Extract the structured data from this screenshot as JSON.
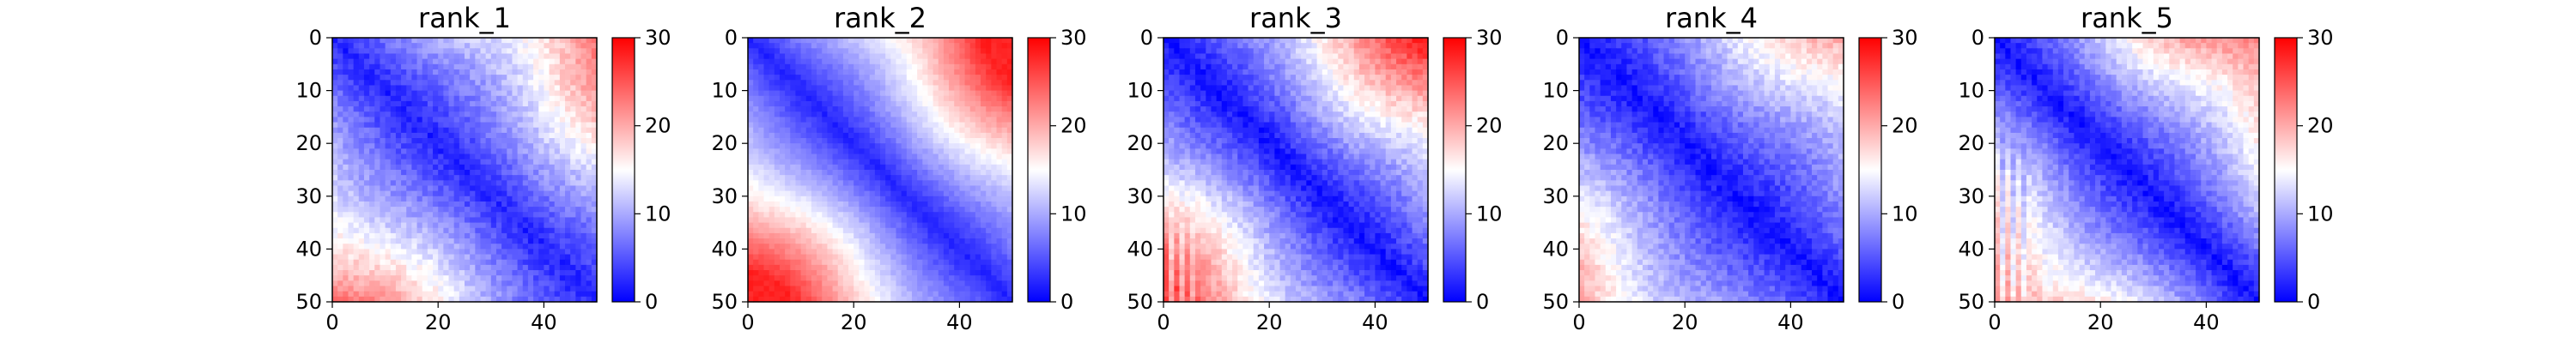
{
  "figure": {
    "background": "#ffffff"
  },
  "colormap": {
    "name": "bwr",
    "low": "#0000ff",
    "mid": "#ffffff",
    "high": "#ff0000"
  },
  "chart_data": [
    {
      "type": "heatmap",
      "title": "rank_1",
      "xlabel": "",
      "ylabel": "",
      "grid": false,
      "matrix_size": 50,
      "x_range": [
        0,
        50
      ],
      "y_range": [
        0,
        50
      ],
      "x_ticks": [
        0,
        20,
        40
      ],
      "y_ticks": [
        0,
        10,
        20,
        30,
        40,
        50
      ],
      "colorbar": {
        "range": [
          0,
          30
        ],
        "ticks": [
          0,
          10,
          20,
          30
        ]
      },
      "pattern": {
        "diag": 2,
        "slope": 0.42,
        "far": 24,
        "low_block": 16,
        "low_block_value": 9,
        "lower_left_value": 27,
        "striped": true
      }
    },
    {
      "type": "heatmap",
      "title": "rank_2",
      "xlabel": "",
      "ylabel": "",
      "grid": false,
      "matrix_size": 50,
      "x_range": [
        0,
        50
      ],
      "y_range": [
        0,
        50
      ],
      "x_ticks": [
        0,
        20,
        40
      ],
      "y_ticks": [
        0,
        10,
        20,
        30,
        40,
        50
      ],
      "colorbar": {
        "range": [
          0,
          30
        ],
        "ticks": [
          0,
          10,
          20,
          30
        ]
      },
      "pattern": {
        "diag": 2,
        "slope": 0.55,
        "far": 28,
        "low_block": 12,
        "low_block_value": 11,
        "lower_left_value": 28,
        "striped": false
      }
    },
    {
      "type": "heatmap",
      "title": "rank_3",
      "xlabel": "",
      "ylabel": "",
      "grid": false,
      "matrix_size": 50,
      "x_range": [
        0,
        50
      ],
      "y_range": [
        0,
        50
      ],
      "x_ticks": [
        0,
        20,
        40
      ],
      "y_ticks": [
        0,
        10,
        20,
        30,
        40,
        50
      ],
      "colorbar": {
        "range": [
          0,
          30
        ],
        "ticks": [
          0,
          10,
          20,
          30
        ]
      },
      "pattern": {
        "diag": 1,
        "slope": 0.5,
        "far": 29,
        "low_block": 15,
        "low_block_value": 8,
        "lower_left_value": 18,
        "striped": true
      }
    },
    {
      "type": "heatmap",
      "title": "rank_4",
      "xlabel": "",
      "ylabel": "",
      "grid": false,
      "matrix_size": 50,
      "x_range": [
        0,
        50
      ],
      "y_range": [
        0,
        50
      ],
      "x_ticks": [
        0,
        20,
        40
      ],
      "y_ticks": [
        0,
        10,
        20,
        30,
        40,
        50
      ],
      "colorbar": {
        "range": [
          0,
          30
        ],
        "ticks": [
          0,
          10,
          20,
          30
        ]
      },
      "pattern": {
        "diag": 1,
        "slope": 0.38,
        "far": 29,
        "low_block": 15,
        "low_block_value": 10,
        "lower_left_value": 24,
        "striped": true
      }
    },
    {
      "type": "heatmap",
      "title": "rank_5",
      "xlabel": "",
      "ylabel": "",
      "grid": false,
      "matrix_size": 50,
      "x_range": [
        0,
        50
      ],
      "y_range": [
        0,
        50
      ],
      "x_ticks": [
        0,
        20,
        40
      ],
      "y_ticks": [
        0,
        10,
        20,
        30,
        40,
        50
      ],
      "colorbar": {
        "range": [
          0,
          30
        ],
        "ticks": [
          0,
          10,
          20,
          30
        ]
      },
      "pattern": {
        "diag": 1,
        "slope": 0.5,
        "far": 29,
        "low_block": 16,
        "low_block_value": 7,
        "lower_left_value": 14,
        "striped": true
      }
    }
  ]
}
